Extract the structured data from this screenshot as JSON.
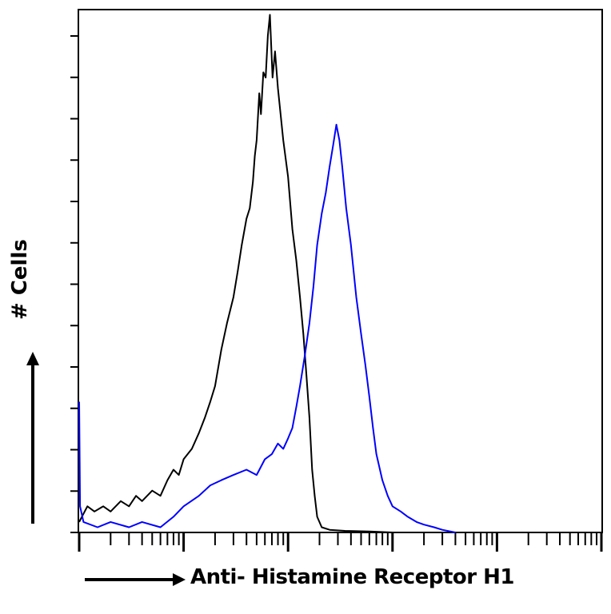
{
  "chart_data": {
    "type": "line",
    "xlabel": "Anti- Histamine Receptor H1",
    "ylabel": "# Cells",
    "x_scale": "log",
    "xlim": [
      1,
      100000
    ],
    "ylim": [
      0,
      100
    ],
    "legend": "none",
    "grid": false,
    "series": [
      {
        "color": "#000000",
        "points": [
          [
            1.0,
            2
          ],
          [
            1.2,
            5
          ],
          [
            1.4,
            4
          ],
          [
            1.7,
            5
          ],
          [
            2.0,
            4
          ],
          [
            2.5,
            6
          ],
          [
            3.0,
            5
          ],
          [
            3.5,
            7
          ],
          [
            4.0,
            6
          ],
          [
            5.0,
            8
          ],
          [
            6.0,
            7
          ],
          [
            7.0,
            10
          ],
          [
            8.0,
            12
          ],
          [
            9.0,
            11
          ],
          [
            10,
            14
          ],
          [
            12,
            16
          ],
          [
            14,
            19
          ],
          [
            16,
            22
          ],
          [
            18,
            25
          ],
          [
            20,
            28
          ],
          [
            23,
            35
          ],
          [
            26,
            40
          ],
          [
            30,
            45
          ],
          [
            33,
            50
          ],
          [
            36,
            55
          ],
          [
            40,
            60
          ],
          [
            43,
            62
          ],
          [
            46,
            67
          ],
          [
            48,
            72
          ],
          [
            50,
            75
          ],
          [
            53,
            84
          ],
          [
            55,
            80
          ],
          [
            58,
            88
          ],
          [
            61,
            87
          ],
          [
            64,
            95
          ],
          [
            67,
            99
          ],
          [
            71,
            87
          ],
          [
            75,
            92
          ],
          [
            80,
            85
          ],
          [
            90,
            75
          ],
          [
            100,
            68
          ],
          [
            110,
            58
          ],
          [
            120,
            52
          ],
          [
            130,
            45
          ],
          [
            140,
            38
          ],
          [
            150,
            30
          ],
          [
            160,
            22
          ],
          [
            170,
            12
          ],
          [
            180,
            7
          ],
          [
            190,
            3
          ],
          [
            210,
            1
          ],
          [
            250,
            0.5
          ],
          [
            350,
            0.3
          ],
          [
            600,
            0.2
          ],
          [
            1000,
            0
          ]
        ]
      },
      {
        "color": "#0000ff",
        "points": [
          [
            1.0,
            25
          ],
          [
            1.02,
            5
          ],
          [
            1.1,
            2
          ],
          [
            1.5,
            1
          ],
          [
            2.0,
            2
          ],
          [
            3.0,
            1
          ],
          [
            4.0,
            2
          ],
          [
            6.0,
            1
          ],
          [
            8.0,
            3
          ],
          [
            10,
            5
          ],
          [
            14,
            7
          ],
          [
            18,
            9
          ],
          [
            23,
            10
          ],
          [
            30,
            11
          ],
          [
            40,
            12
          ],
          [
            50,
            11
          ],
          [
            60,
            14
          ],
          [
            70,
            15
          ],
          [
            80,
            17
          ],
          [
            90,
            16
          ],
          [
            100,
            18
          ],
          [
            110,
            20
          ],
          [
            120,
            24
          ],
          [
            130,
            28
          ],
          [
            145,
            34
          ],
          [
            160,
            40
          ],
          [
            175,
            47
          ],
          [
            190,
            55
          ],
          [
            210,
            61
          ],
          [
            230,
            65
          ],
          [
            250,
            70
          ],
          [
            270,
            74
          ],
          [
            290,
            78
          ],
          [
            310,
            75
          ],
          [
            330,
            70
          ],
          [
            360,
            62
          ],
          [
            400,
            55
          ],
          [
            450,
            45
          ],
          [
            500,
            38
          ],
          [
            550,
            32
          ],
          [
            600,
            26
          ],
          [
            650,
            20
          ],
          [
            700,
            15
          ],
          [
            800,
            10
          ],
          [
            900,
            7
          ],
          [
            1000,
            5
          ],
          [
            1200,
            4
          ],
          [
            1400,
            3
          ],
          [
            1700,
            2
          ],
          [
            2000,
            1.5
          ],
          [
            2500,
            1
          ],
          [
            3000,
            0.5
          ],
          [
            4000,
            0
          ]
        ]
      }
    ]
  }
}
